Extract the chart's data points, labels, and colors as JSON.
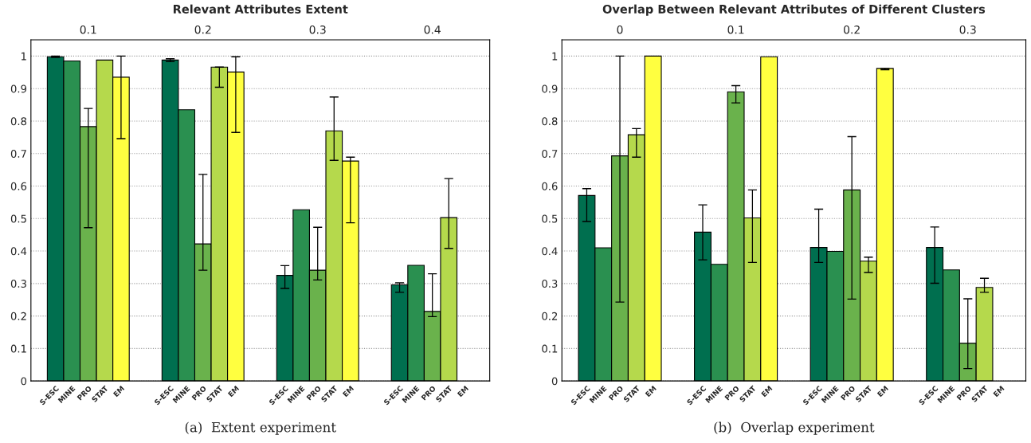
{
  "chart_data": [
    {
      "type": "bar",
      "title": "Relevant Attributes Extent",
      "categories": [
        "0.1",
        "0.2",
        "0.3",
        "0.4"
      ],
      "ylim": [
        0,
        1.05
      ],
      "yticks": [
        0,
        0.1,
        0.2,
        0.3,
        0.4,
        0.5,
        0.6,
        0.7,
        0.8,
        0.9,
        1
      ],
      "grid": "y",
      "annotations": [
        "(a)  Extent experiment"
      ],
      "series": [
        {
          "name": "S-ESC",
          "color": "#006f4f",
          "values": [
            0.998,
            0.988,
            0.325,
            0.296
          ],
          "errors": [
            [
              0.996,
              1.0
            ],
            [
              0.983,
              0.992
            ],
            [
              0.285,
              0.355
            ],
            [
              0.273,
              0.302
            ]
          ]
        },
        {
          "name": "MINE",
          "color": "#2a9050",
          "values": [
            0.985,
            0.835,
            0.527,
            0.356
          ],
          "errors": [
            null,
            null,
            null,
            null
          ]
        },
        {
          "name": "PRO",
          "color": "#6ab24c",
          "values": [
            0.783,
            0.422,
            0.341,
            0.214
          ],
          "errors": [
            [
              0.472,
              0.839
            ],
            [
              0.341,
              0.636
            ],
            [
              0.311,
              0.473
            ],
            [
              0.198,
              0.33
            ]
          ]
        },
        {
          "name": "STAT",
          "color": "#b5d94c",
          "values": [
            0.988,
            0.966,
            0.77,
            0.503
          ],
          "errors": [
            null,
            [
              0.904,
              0.966
            ],
            [
              0.679,
              0.874
            ],
            [
              0.408,
              0.623
            ]
          ]
        },
        {
          "name": "EM",
          "color": "#ffff40",
          "values": [
            0.935,
            0.951,
            0.677,
            null
          ],
          "errors": [
            [
              0.746,
              1.0
            ],
            [
              0.765,
              0.998
            ],
            [
              0.487,
              0.689
            ],
            null
          ]
        }
      ]
    },
    {
      "type": "bar",
      "title": "Overlap Between Relevant Attributes of Different Clusters",
      "categories": [
        "0",
        "0.1",
        "0.2",
        "0.3"
      ],
      "ylim": [
        0,
        1.05
      ],
      "yticks": [
        0,
        0.1,
        0.2,
        0.3,
        0.4,
        0.5,
        0.6,
        0.7,
        0.8,
        0.9,
        1
      ],
      "grid": "y",
      "annotations": [
        "(b)  Overlap experiment"
      ],
      "series": [
        {
          "name": "S-ESC",
          "color": "#006f4f",
          "values": [
            0.571,
            0.458,
            0.411,
            0.411
          ],
          "errors": [
            [
              0.491,
              0.592
            ],
            [
              0.373,
              0.542
            ],
            [
              0.365,
              0.529
            ],
            [
              0.301,
              0.474
            ]
          ]
        },
        {
          "name": "MINE",
          "color": "#2a9050",
          "values": [
            0.41,
            0.359,
            0.399,
            0.342
          ],
          "errors": [
            null,
            null,
            null,
            null
          ]
        },
        {
          "name": "PRO",
          "color": "#6ab24c",
          "values": [
            0.693,
            0.89,
            0.588,
            0.116
          ],
          "errors": [
            [
              0.243,
              1.0
            ],
            [
              0.856,
              0.909
            ],
            [
              0.252,
              0.752
            ],
            [
              0.038,
              0.253
            ]
          ]
        },
        {
          "name": "STAT",
          "color": "#b5d94c",
          "values": [
            0.758,
            0.502,
            0.369,
            0.288
          ],
          "errors": [
            [
              0.689,
              0.777
            ],
            [
              0.365,
              0.588
            ],
            [
              0.334,
              0.381
            ],
            [
              0.273,
              0.316
            ]
          ]
        },
        {
          "name": "EM",
          "color": "#ffff40",
          "values": [
            1.0,
            0.998,
            0.962,
            null
          ],
          "errors": [
            null,
            null,
            [
              0.958,
              0.962
            ],
            null
          ]
        }
      ]
    }
  ]
}
